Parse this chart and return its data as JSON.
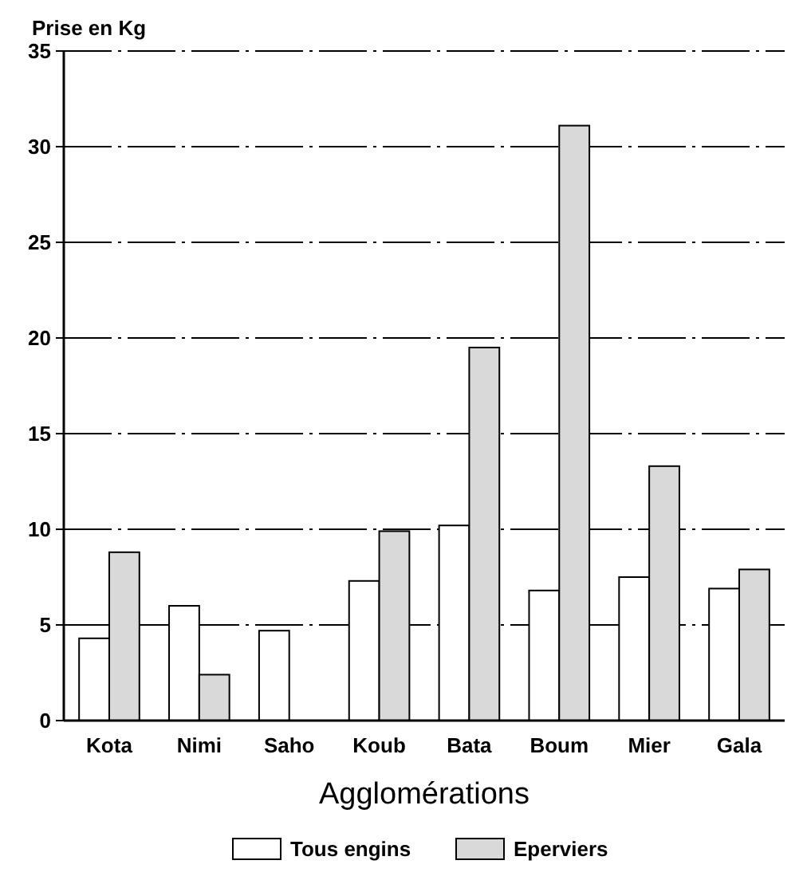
{
  "chart_data": {
    "type": "bar",
    "ylabel": "Prise en Kg",
    "xlabel": "Agglomérations",
    "categories": [
      "Kota",
      "Nimi",
      "Saho",
      "Koub",
      "Bata",
      "Boum",
      "Mier",
      "Gala"
    ],
    "series": [
      {
        "name": "Tous engins",
        "color": "#ffffff",
        "values": [
          4.3,
          6.0,
          4.7,
          7.3,
          10.2,
          6.8,
          7.5,
          6.9
        ]
      },
      {
        "name": "Eperviers",
        "color": "#d9d9d9",
        "values": [
          8.8,
          2.4,
          null,
          9.9,
          19.5,
          31.1,
          13.3,
          7.9
        ]
      }
    ],
    "ylim": [
      0,
      35
    ],
    "yticks": [
      0,
      5,
      10,
      15,
      20,
      25,
      30,
      35
    ],
    "grid": "y",
    "legend": "bottom"
  }
}
